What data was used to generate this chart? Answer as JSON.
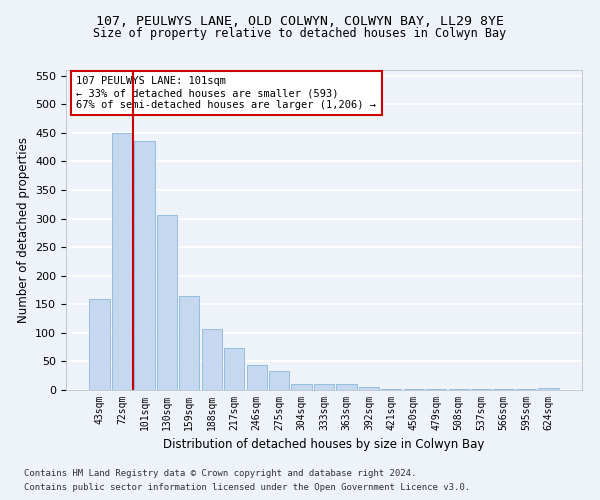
{
  "title1": "107, PEULWYS LANE, OLD COLWYN, COLWYN BAY, LL29 8YE",
  "title2": "Size of property relative to detached houses in Colwyn Bay",
  "xlabel": "Distribution of detached houses by size in Colwyn Bay",
  "ylabel": "Number of detached properties",
  "footnote1": "Contains HM Land Registry data © Crown copyright and database right 2024.",
  "footnote2": "Contains public sector information licensed under the Open Government Licence v3.0.",
  "categories": [
    "43sqm",
    "72sqm",
    "101sqm",
    "130sqm",
    "159sqm",
    "188sqm",
    "217sqm",
    "246sqm",
    "275sqm",
    "304sqm",
    "333sqm",
    "363sqm",
    "392sqm",
    "421sqm",
    "450sqm",
    "479sqm",
    "508sqm",
    "537sqm",
    "566sqm",
    "595sqm",
    "624sqm"
  ],
  "values": [
    160,
    450,
    435,
    307,
    165,
    107,
    73,
    44,
    33,
    10,
    10,
    10,
    5,
    2,
    2,
    2,
    1,
    1,
    1,
    1,
    3
  ],
  "bar_color": "#c5d8f0",
  "bar_edge_color": "#7aafd4",
  "highlight_index": 2,
  "highlight_line_color": "#cc0000",
  "annotation_text": "107 PEULWYS LANE: 101sqm\n← 33% of detached houses are smaller (593)\n67% of semi-detached houses are larger (1,206) →",
  "annotation_box_color": "#ffffff",
  "annotation_box_edge_color": "#cc0000",
  "ylim": [
    0,
    560
  ],
  "yticks": [
    0,
    50,
    100,
    150,
    200,
    250,
    300,
    350,
    400,
    450,
    500,
    550
  ],
  "background_color": "#eef2f9",
  "grid_color": "#ffffff",
  "title1_fontsize": 9.5,
  "title2_fontsize": 8.5,
  "xlabel_fontsize": 8.5,
  "ylabel_fontsize": 8.5,
  "footnote_fontsize": 6.5
}
